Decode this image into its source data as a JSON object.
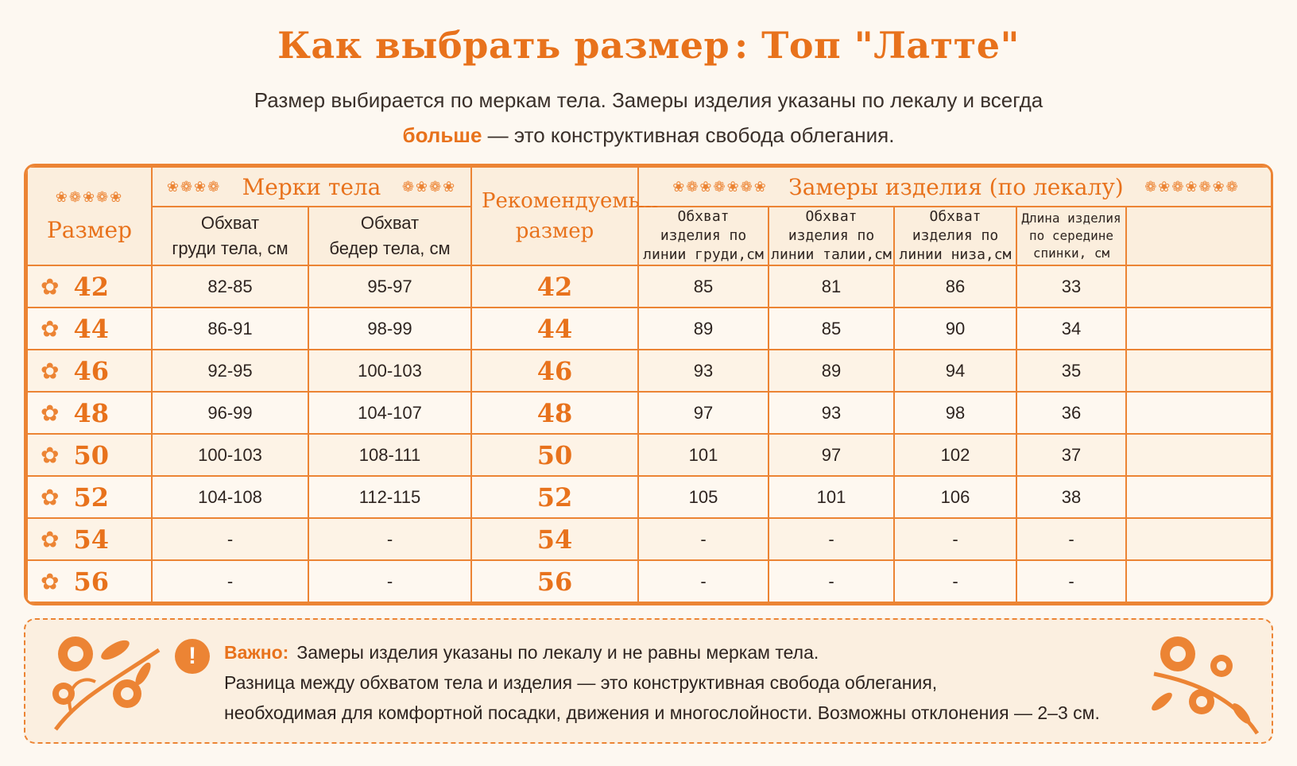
{
  "title": {
    "part1": "Как выбрать размер",
    "separator": ":",
    "part2": "Топ \"Латте\""
  },
  "subtitle": {
    "line1": "Размер выбирается по меркам тела. Замеры изделия указаны по лекалу и всегда",
    "bold": "больше",
    "line2_rest": " — это конструктивная свобода облегания."
  },
  "table": {
    "size_header": "Размер",
    "body_group": "Мерки тела",
    "body_cols": [
      "Обхват\nгруди тела, см",
      "Обхват\nбедер тела, см"
    ],
    "recommended_header": "Рекомендуемый размер",
    "garment_group": "Замеры изделия (по лекалу)",
    "garment_cols": [
      "Обхват\nизделия по\nлинии груди,см",
      "Обхват\nизделия по\nлинии талии,см",
      "Обхват\nизделия по\nлинии низа,см",
      "Длина изделия\nпо середине\nспинки, см"
    ],
    "rows": [
      {
        "size": "42",
        "chest": "82-85",
        "hips": "95-97",
        "rec": "42",
        "g_chest": "85",
        "g_waist": "81",
        "g_hem": "86",
        "g_len": "33"
      },
      {
        "size": "44",
        "chest": "86-91",
        "hips": "98-99",
        "rec": "44",
        "g_chest": "89",
        "g_waist": "85",
        "g_hem": "90",
        "g_len": "34"
      },
      {
        "size": "46",
        "chest": "92-95",
        "hips": "100-103",
        "rec": "46",
        "g_chest": "93",
        "g_waist": "89",
        "g_hem": "94",
        "g_len": "35"
      },
      {
        "size": "48",
        "chest": "96-99",
        "hips": "104-107",
        "rec": "48",
        "g_chest": "97",
        "g_waist": "93",
        "g_hem": "98",
        "g_len": "36"
      },
      {
        "size": "50",
        "chest": "100-103",
        "hips": "108-111",
        "rec": "50",
        "g_chest": "101",
        "g_waist": "97",
        "g_hem": "102",
        "g_len": "37"
      },
      {
        "size": "52",
        "chest": "104-108",
        "hips": "112-115",
        "rec": "52",
        "g_chest": "105",
        "g_waist": "101",
        "g_hem": "106",
        "g_len": "38"
      },
      {
        "size": "54",
        "chest": "-",
        "hips": "-",
        "rec": "54",
        "g_chest": "-",
        "g_waist": "-",
        "g_hem": "-",
        "g_len": "-"
      },
      {
        "size": "56",
        "chest": "-",
        "hips": "-",
        "rec": "56",
        "g_chest": "-",
        "g_waist": "-",
        "g_hem": "-",
        "g_len": "-"
      }
    ]
  },
  "note": {
    "icon": "exclamation-icon",
    "label": "Важно:",
    "line1": "Замеры изделия указаны по лекалу и не равны меркам тела.",
    "line2": "Разница между обхватом тела и изделия — это конструктивная свобода облегания,",
    "line3": "необходимая для комфортной посадки, движения и многослойности. Возможны отклонения — 2–3 см."
  },
  "colors": {
    "accent": "#e8721c",
    "border": "#ec8434",
    "background": "#fdf8f1"
  }
}
